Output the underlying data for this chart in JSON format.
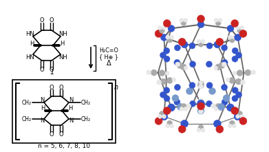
{
  "background_color": "#ffffff",
  "fig_width": 3.91,
  "fig_height": 2.21,
  "dpi": 100,
  "h2co_text": "H₂C=O",
  "hplus_text": "{ H⊕ }",
  "delta_text": "Δ",
  "n_values_text": "n = 5, 6, 7, 8, 10",
  "compound_label": "1",
  "atom_colors": {
    "C": "#aaaaaa",
    "N": "#3355cc",
    "O": "#cc2222",
    "H": "#e8e8e8",
    "Cb": "#7799cc"
  }
}
